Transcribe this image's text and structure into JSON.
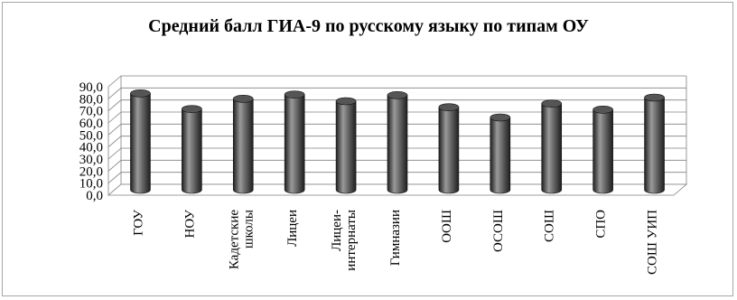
{
  "chart_data": {
    "type": "bar",
    "title": "Средний балл ГИА-9 по русскому языку по типам ОУ",
    "xlabel": "",
    "ylabel": "",
    "categories": [
      "ГОУ",
      "НОУ",
      "Кадетские школы",
      "Лицеи",
      "Лицеи-интернаты",
      "Гимназии",
      "ООШ",
      "ОСОШ",
      "СОШ",
      "СПО",
      "СОШ УИП"
    ],
    "category_lines": [
      [
        "ГОУ"
      ],
      [
        "НОУ"
      ],
      [
        "Кадетские",
        "школы"
      ],
      [
        "Лицеи"
      ],
      [
        "Лицеи-",
        "интернаты"
      ],
      [
        "Гимназии"
      ],
      [
        "ООШ"
      ],
      [
        "ОСОШ"
      ],
      [
        "СОШ"
      ],
      [
        "СПО"
      ],
      [
        "СОШ УИП"
      ]
    ],
    "values": [
      80.0,
      67.0,
      75.5,
      79.0,
      73.5,
      78.5,
      68.5,
      60.0,
      71.5,
      66.5,
      76.5
    ],
    "ylim": [
      0,
      90
    ],
    "yticks": [
      "0,0",
      "10,0",
      "20,0",
      "30,0",
      "40,0",
      "50,0",
      "60,0",
      "70,0",
      "80,0",
      "90,0"
    ],
    "grid": true,
    "legend": "none",
    "style": "3d-cylinder",
    "colors": {
      "bar": "#555555",
      "bar_light": "#9a9a9a",
      "bar_dark": "#1e1e1e",
      "grid": "#808080"
    }
  }
}
